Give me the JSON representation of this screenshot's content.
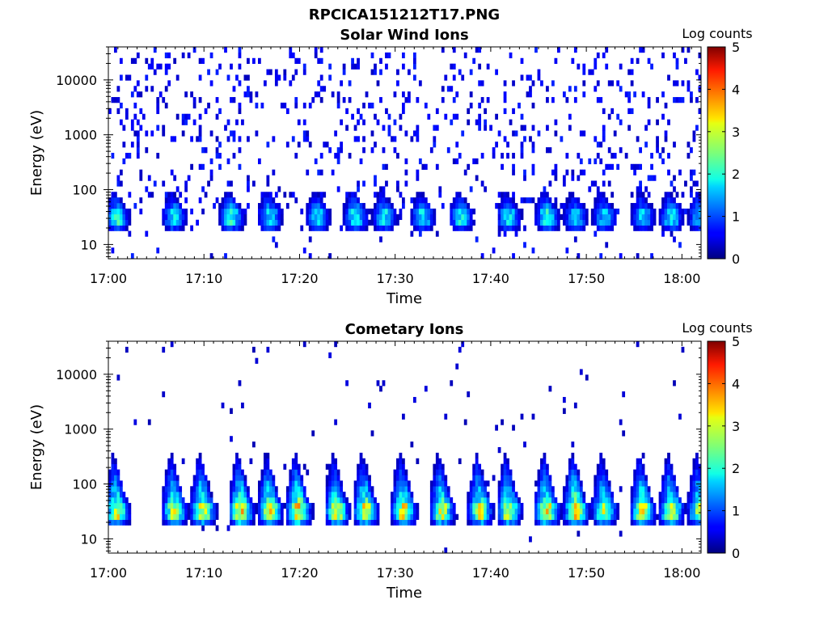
{
  "figure": {
    "title": "RPCICA151212T17.PNG"
  },
  "chart_data": [
    {
      "type": "heatmap",
      "title": "Solar Wind Ions",
      "xlabel": "Time",
      "ylabel": "Energy (eV)",
      "x_range": [
        "17:00",
        "18:02"
      ],
      "x_ticks": [
        "17:00",
        "17:10",
        "17:20",
        "17:30",
        "17:40",
        "17:50",
        "18:00"
      ],
      "y_scale": "log",
      "y_range": [
        5.5,
        40000
      ],
      "y_ticks": [
        10,
        100,
        1000,
        10000
      ],
      "y_tick_labels": [
        "10",
        "100",
        "1000",
        "10000"
      ],
      "colorbar": {
        "label": "Log counts",
        "range": [
          0,
          5
        ],
        "ticks": [
          "0",
          "1",
          "2",
          "3",
          "4",
          "5"
        ],
        "colormap": "jet"
      },
      "band_energy_ev": [
        22,
        45
      ],
      "bursts": [
        {
          "t": "17:00",
          "peak_log_counts": 2.2
        },
        {
          "t": "17:06",
          "peak_log_counts": 2.0
        },
        {
          "t": "17:12",
          "peak_log_counts": 2.2
        },
        {
          "t": "17:16",
          "peak_log_counts": 2.0
        },
        {
          "t": "17:21",
          "peak_log_counts": 2.0
        },
        {
          "t": "17:25",
          "peak_log_counts": 2.2
        },
        {
          "t": "17:28",
          "peak_log_counts": 2.0
        },
        {
          "t": "17:32",
          "peak_log_counts": 2.0
        },
        {
          "t": "17:36",
          "peak_log_counts": 2.0
        },
        {
          "t": "17:41",
          "peak_log_counts": 2.0
        },
        {
          "t": "17:45",
          "peak_log_counts": 2.2
        },
        {
          "t": "17:48",
          "peak_log_counts": 1.8
        },
        {
          "t": "17:51",
          "peak_log_counts": 1.8
        },
        {
          "t": "17:55",
          "peak_log_counts": 1.8
        },
        {
          "t": "17:58",
          "peak_log_counts": 2.0
        },
        {
          "t": "18:01",
          "peak_log_counts": 1.8
        }
      ],
      "background_log_counts": 0.5
    },
    {
      "type": "heatmap",
      "title": "Cometary Ions",
      "xlabel": "Time",
      "ylabel": "Energy (eV)",
      "x_range": [
        "17:00",
        "18:02"
      ],
      "x_ticks": [
        "17:00",
        "17:10",
        "17:20",
        "17:30",
        "17:40",
        "17:50",
        "18:00"
      ],
      "y_scale": "log",
      "y_range": [
        5.5,
        40000
      ],
      "y_ticks": [
        10,
        100,
        1000,
        10000
      ],
      "y_tick_labels": [
        "10",
        "100",
        "1000",
        "10000"
      ],
      "colorbar": {
        "label": "Log counts",
        "range": [
          0,
          5
        ],
        "ticks": [
          "0",
          "1",
          "2",
          "3",
          "4",
          "5"
        ],
        "colormap": "jet"
      },
      "band_energy_ev": [
        22,
        45
      ],
      "bursts": [
        {
          "t": "17:00",
          "peak_log_counts": 3.2
        },
        {
          "t": "17:06",
          "peak_log_counts": 3.2
        },
        {
          "t": "17:09",
          "peak_log_counts": 3.4
        },
        {
          "t": "17:13",
          "peak_log_counts": 3.6
        },
        {
          "t": "17:16",
          "peak_log_counts": 3.4
        },
        {
          "t": "17:19",
          "peak_log_counts": 3.6
        },
        {
          "t": "17:23",
          "peak_log_counts": 3.2
        },
        {
          "t": "17:26",
          "peak_log_counts": 3.4
        },
        {
          "t": "17:30",
          "peak_log_counts": 3.4
        },
        {
          "t": "17:34",
          "peak_log_counts": 3.2
        },
        {
          "t": "17:38",
          "peak_log_counts": 3.2
        },
        {
          "t": "17:41",
          "peak_log_counts": 3.2
        },
        {
          "t": "17:45",
          "peak_log_counts": 3.4
        },
        {
          "t": "17:48",
          "peak_log_counts": 3.6
        },
        {
          "t": "17:51",
          "peak_log_counts": 3.0
        },
        {
          "t": "17:55",
          "peak_log_counts": 3.4
        },
        {
          "t": "17:58",
          "peak_log_counts": 3.2
        },
        {
          "t": "18:01",
          "peak_log_counts": 3.0
        }
      ],
      "background_log_counts": 0.3
    }
  ]
}
